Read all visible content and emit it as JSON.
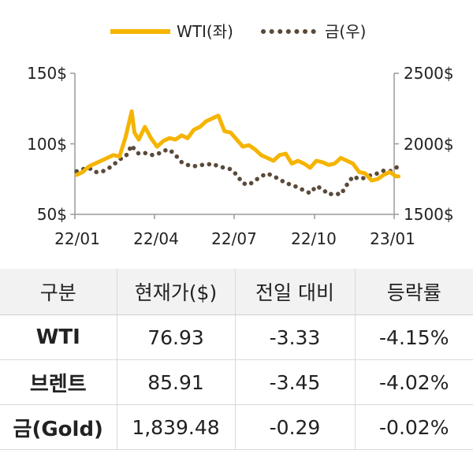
{
  "chart_data": {
    "type": "line",
    "x_ticks": [
      "22/01",
      "22/04",
      "22/07",
      "22/10",
      "23/01"
    ],
    "y_left": {
      "ticks": [
        "150$",
        "100$",
        "50$"
      ],
      "range": [
        50,
        150
      ]
    },
    "y_right": {
      "ticks": [
        "2500$",
        "2000$",
        "1500$"
      ],
      "range": [
        1500,
        2500
      ]
    },
    "legend_position": "top",
    "series": [
      {
        "name": "WTI(좌)",
        "axis": "left",
        "style": "solid",
        "color": "#F5B400",
        "x": [
          "2022-01-03",
          "2022-01-10",
          "2022-01-17",
          "2022-01-24",
          "2022-01-31",
          "2022-02-07",
          "2022-02-14",
          "2022-02-21",
          "2022-02-28",
          "2022-03-07",
          "2022-03-10",
          "2022-03-15",
          "2022-03-22",
          "2022-03-29",
          "2022-04-05",
          "2022-04-12",
          "2022-04-19",
          "2022-04-26",
          "2022-05-03",
          "2022-05-10",
          "2022-05-17",
          "2022-05-24",
          "2022-05-31",
          "2022-06-07",
          "2022-06-14",
          "2022-06-21",
          "2022-06-28",
          "2022-07-05",
          "2022-07-12",
          "2022-07-19",
          "2022-07-26",
          "2022-08-02",
          "2022-08-09",
          "2022-08-16",
          "2022-08-23",
          "2022-08-30",
          "2022-09-06",
          "2022-09-13",
          "2022-09-20",
          "2022-09-27",
          "2022-10-04",
          "2022-10-11",
          "2022-10-18",
          "2022-10-25",
          "2022-11-01",
          "2022-11-08",
          "2022-11-15",
          "2022-11-22",
          "2022-11-29",
          "2022-12-06",
          "2022-12-13",
          "2022-12-20",
          "2022-12-27",
          "2023-01-03",
          "2023-01-06"
        ],
        "y": [
          78,
          80,
          84,
          86,
          88,
          90,
          92,
          91,
          105,
          123,
          108,
          103,
          112,
          104,
          98,
          102,
          104,
          103,
          106,
          104,
          110,
          112,
          116,
          118,
          120,
          109,
          108,
          103,
          98,
          99,
          96,
          92,
          90,
          88,
          92,
          93,
          86,
          88,
          86,
          83,
          88,
          87,
          85,
          86,
          90,
          88,
          86,
          80,
          79,
          74,
          75,
          78,
          80,
          77,
          76.93
        ]
      },
      {
        "name": "금(우)",
        "axis": "right",
        "style": "dotted",
        "color": "#5a4a3a",
        "x": [
          "2022-01-03",
          "2022-01-10",
          "2022-01-17",
          "2022-01-24",
          "2022-01-31",
          "2022-02-07",
          "2022-02-14",
          "2022-02-21",
          "2022-02-28",
          "2022-03-07",
          "2022-03-10",
          "2022-03-15",
          "2022-03-22",
          "2022-03-29",
          "2022-04-05",
          "2022-04-12",
          "2022-04-19",
          "2022-04-26",
          "2022-05-03",
          "2022-05-10",
          "2022-05-17",
          "2022-05-24",
          "2022-05-31",
          "2022-06-07",
          "2022-06-14",
          "2022-06-21",
          "2022-06-28",
          "2022-07-05",
          "2022-07-12",
          "2022-07-19",
          "2022-07-26",
          "2022-08-02",
          "2022-08-09",
          "2022-08-16",
          "2022-08-23",
          "2022-08-30",
          "2022-09-06",
          "2022-09-13",
          "2022-09-20",
          "2022-09-27",
          "2022-10-04",
          "2022-10-11",
          "2022-10-18",
          "2022-10-25",
          "2022-11-01",
          "2022-11-08",
          "2022-11-15",
          "2022-11-22",
          "2022-11-29",
          "2022-12-06",
          "2022-12-13",
          "2022-12-20",
          "2022-12-27",
          "2023-01-03",
          "2023-01-06"
        ],
        "y": [
          1805,
          1820,
          1830,
          1800,
          1800,
          1820,
          1850,
          1890,
          1910,
          1990,
          1960,
          1930,
          1935,
          1920,
          1925,
          1950,
          1960,
          1920,
          1870,
          1850,
          1840,
          1850,
          1850,
          1860,
          1840,
          1830,
          1820,
          1780,
          1720,
          1710,
          1740,
          1770,
          1790,
          1770,
          1750,
          1720,
          1710,
          1690,
          1670,
          1650,
          1700,
          1680,
          1640,
          1650,
          1640,
          1710,
          1770,
          1750,
          1760,
          1780,
          1790,
          1810,
          1805,
          1830,
          1839.48
        ]
      }
    ]
  },
  "table": {
    "headers": [
      "구분",
      "현재가($)",
      "전일 대비",
      "등락률"
    ],
    "rows": [
      {
        "name": "WTI",
        "price": "76.93",
        "change": "-3.33",
        "rate": "-4.15%"
      },
      {
        "name": "브렌트",
        "price": "85.91",
        "change": "-3.45",
        "rate": "-4.02%"
      },
      {
        "name": "금(Gold)",
        "price": "1,839.48",
        "change": "-0.29",
        "rate": "-0.02%"
      }
    ]
  }
}
